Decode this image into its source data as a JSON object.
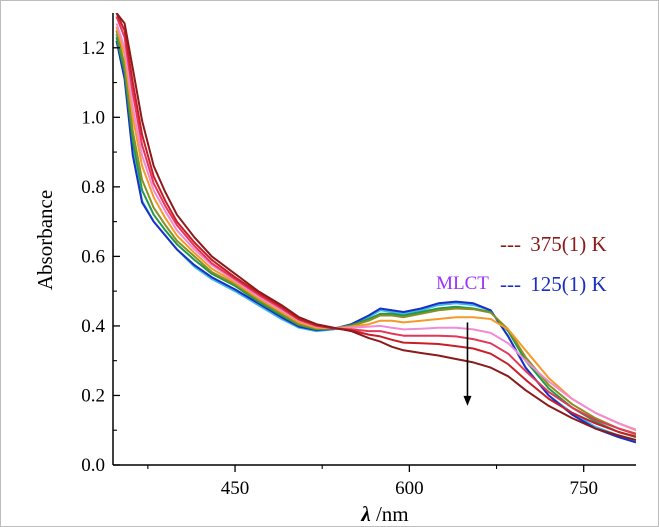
{
  "chart_data": {
    "type": "line",
    "title": "",
    "xlabel_symbol": "λ",
    "xlabel_unit": " /nm",
    "ylabel": "Absorbance",
    "xlim": [
      345,
      795
    ],
    "ylim": [
      0,
      1.3
    ],
    "x_ticks": [
      450,
      600,
      750
    ],
    "y_ticks": [
      0.0,
      0.2,
      0.4,
      0.6,
      0.8,
      1.0,
      1.2
    ],
    "y_tick_labels": [
      "0.0",
      "0.2",
      "0.4",
      "0.6",
      "0.8",
      "1.0",
      "1.2"
    ],
    "x_tick_labels": [
      "450",
      "600",
      "750"
    ],
    "grid": false,
    "legend": {
      "placement": "right-middle",
      "entries": [
        {
          "marker": "---",
          "label": "375(1) K",
          "color": "#8b1a1a"
        },
        {
          "marker": "---",
          "label": "125(1) K",
          "color": "#1a2fc4"
        }
      ]
    },
    "annotation": {
      "text": "MLCT",
      "color": "#9b30ff",
      "arrow_x": 650,
      "arrow_from": 0.41,
      "arrow_to": 0.17
    },
    "series": [
      {
        "color": "#3fb6e8",
        "values": [
          [
            348,
            1.24
          ],
          [
            355,
            1.12
          ],
          [
            362,
            0.9
          ],
          [
            370,
            0.76
          ],
          [
            380,
            0.7
          ],
          [
            390,
            0.66
          ],
          [
            400,
            0.62
          ],
          [
            415,
            0.57
          ],
          [
            430,
            0.535
          ],
          [
            450,
            0.5
          ],
          [
            470,
            0.46
          ],
          [
            490,
            0.42
          ],
          [
            505,
            0.395
          ],
          [
            520,
            0.385
          ],
          [
            535,
            0.39
          ],
          [
            550,
            0.4
          ],
          [
            565,
            0.425
          ],
          [
            575,
            0.445
          ],
          [
            585,
            0.44
          ],
          [
            595,
            0.435
          ],
          [
            610,
            0.445
          ],
          [
            625,
            0.46
          ],
          [
            640,
            0.465
          ],
          [
            655,
            0.46
          ],
          [
            670,
            0.445
          ],
          [
            685,
            0.37
          ],
          [
            700,
            0.28
          ],
          [
            720,
            0.2
          ],
          [
            740,
            0.15
          ],
          [
            760,
            0.11
          ],
          [
            780,
            0.085
          ],
          [
            795,
            0.07
          ]
        ]
      },
      {
        "color": "#1a2fc4",
        "values": [
          [
            348,
            1.22
          ],
          [
            355,
            1.11
          ],
          [
            362,
            0.89
          ],
          [
            370,
            0.755
          ],
          [
            380,
            0.7
          ],
          [
            390,
            0.66
          ],
          [
            400,
            0.62
          ],
          [
            415,
            0.575
          ],
          [
            430,
            0.54
          ],
          [
            450,
            0.505
          ],
          [
            470,
            0.465
          ],
          [
            490,
            0.425
          ],
          [
            505,
            0.398
          ],
          [
            520,
            0.388
          ],
          [
            535,
            0.392
          ],
          [
            550,
            0.405
          ],
          [
            565,
            0.43
          ],
          [
            575,
            0.45
          ],
          [
            585,
            0.445
          ],
          [
            595,
            0.44
          ],
          [
            610,
            0.45
          ],
          [
            625,
            0.465
          ],
          [
            640,
            0.47
          ],
          [
            655,
            0.465
          ],
          [
            670,
            0.445
          ],
          [
            685,
            0.37
          ],
          [
            700,
            0.28
          ],
          [
            720,
            0.2
          ],
          [
            740,
            0.145
          ],
          [
            760,
            0.105
          ],
          [
            780,
            0.08
          ],
          [
            795,
            0.065
          ]
        ]
      },
      {
        "color": "#1f9a4a",
        "values": [
          [
            348,
            1.23
          ],
          [
            355,
            1.13
          ],
          [
            362,
            0.93
          ],
          [
            370,
            0.79
          ],
          [
            380,
            0.72
          ],
          [
            390,
            0.675
          ],
          [
            400,
            0.635
          ],
          [
            415,
            0.59
          ],
          [
            430,
            0.55
          ],
          [
            450,
            0.515
          ],
          [
            470,
            0.47
          ],
          [
            490,
            0.43
          ],
          [
            505,
            0.402
          ],
          [
            520,
            0.39
          ],
          [
            535,
            0.393
          ],
          [
            550,
            0.402
          ],
          [
            565,
            0.42
          ],
          [
            575,
            0.435
          ],
          [
            585,
            0.435
          ],
          [
            595,
            0.43
          ],
          [
            610,
            0.44
          ],
          [
            625,
            0.45
          ],
          [
            640,
            0.455
          ],
          [
            655,
            0.45
          ],
          [
            670,
            0.44
          ],
          [
            685,
            0.385
          ],
          [
            700,
            0.3
          ],
          [
            720,
            0.22
          ],
          [
            740,
            0.165
          ],
          [
            760,
            0.125
          ],
          [
            780,
            0.095
          ],
          [
            795,
            0.08
          ]
        ]
      },
      {
        "color": "#8a8f1f",
        "values": [
          [
            348,
            1.25
          ],
          [
            355,
            1.15
          ],
          [
            362,
            0.96
          ],
          [
            370,
            0.82
          ],
          [
            380,
            0.74
          ],
          [
            390,
            0.69
          ],
          [
            400,
            0.645
          ],
          [
            415,
            0.6
          ],
          [
            430,
            0.555
          ],
          [
            450,
            0.52
          ],
          [
            470,
            0.475
          ],
          [
            490,
            0.435
          ],
          [
            505,
            0.405
          ],
          [
            520,
            0.392
          ],
          [
            535,
            0.393
          ],
          [
            550,
            0.4
          ],
          [
            565,
            0.415
          ],
          [
            575,
            0.43
          ],
          [
            585,
            0.43
          ],
          [
            595,
            0.425
          ],
          [
            610,
            0.435
          ],
          [
            625,
            0.445
          ],
          [
            640,
            0.45
          ],
          [
            655,
            0.448
          ],
          [
            670,
            0.438
          ],
          [
            685,
            0.39
          ],
          [
            700,
            0.31
          ],
          [
            720,
            0.23
          ],
          [
            740,
            0.175
          ],
          [
            760,
            0.135
          ],
          [
            780,
            0.105
          ],
          [
            795,
            0.088
          ]
        ]
      },
      {
        "color": "#f59a2a",
        "values": [
          [
            348,
            1.26
          ],
          [
            355,
            1.18
          ],
          [
            362,
            1.0
          ],
          [
            370,
            0.86
          ],
          [
            380,
            0.77
          ],
          [
            390,
            0.71
          ],
          [
            400,
            0.66
          ],
          [
            415,
            0.61
          ],
          [
            430,
            0.565
          ],
          [
            450,
            0.525
          ],
          [
            470,
            0.48
          ],
          [
            490,
            0.44
          ],
          [
            505,
            0.41
          ],
          [
            520,
            0.395
          ],
          [
            535,
            0.393
          ],
          [
            550,
            0.398
          ],
          [
            565,
            0.405
          ],
          [
            575,
            0.415
          ],
          [
            585,
            0.415
          ],
          [
            595,
            0.41
          ],
          [
            610,
            0.415
          ],
          [
            625,
            0.42
          ],
          [
            640,
            0.425
          ],
          [
            655,
            0.425
          ],
          [
            670,
            0.42
          ],
          [
            685,
            0.39
          ],
          [
            700,
            0.33
          ],
          [
            720,
            0.25
          ],
          [
            740,
            0.19
          ],
          [
            760,
            0.15
          ],
          [
            780,
            0.12
          ],
          [
            795,
            0.1
          ]
        ]
      },
      {
        "color": "#f28bd6",
        "values": [
          [
            348,
            1.27
          ],
          [
            355,
            1.2
          ],
          [
            362,
            1.03
          ],
          [
            370,
            0.89
          ],
          [
            380,
            0.79
          ],
          [
            390,
            0.73
          ],
          [
            400,
            0.675
          ],
          [
            415,
            0.62
          ],
          [
            430,
            0.575
          ],
          [
            450,
            0.53
          ],
          [
            470,
            0.485
          ],
          [
            490,
            0.445
          ],
          [
            505,
            0.415
          ],
          [
            520,
            0.398
          ],
          [
            535,
            0.393
          ],
          [
            550,
            0.395
          ],
          [
            565,
            0.398
          ],
          [
            575,
            0.4
          ],
          [
            585,
            0.395
          ],
          [
            595,
            0.39
          ],
          [
            610,
            0.392
          ],
          [
            625,
            0.395
          ],
          [
            640,
            0.395
          ],
          [
            655,
            0.39
          ],
          [
            670,
            0.38
          ],
          [
            685,
            0.35
          ],
          [
            700,
            0.3
          ],
          [
            720,
            0.24
          ],
          [
            740,
            0.19
          ],
          [
            760,
            0.15
          ],
          [
            780,
            0.12
          ],
          [
            795,
            0.102
          ]
        ]
      },
      {
        "color": "#e4375a",
        "values": [
          [
            348,
            1.29
          ],
          [
            355,
            1.23
          ],
          [
            362,
            1.07
          ],
          [
            370,
            0.92
          ],
          [
            380,
            0.81
          ],
          [
            390,
            0.745
          ],
          [
            400,
            0.69
          ],
          [
            415,
            0.63
          ],
          [
            430,
            0.58
          ],
          [
            450,
            0.535
          ],
          [
            470,
            0.49
          ],
          [
            490,
            0.45
          ],
          [
            505,
            0.418
          ],
          [
            520,
            0.4
          ],
          [
            535,
            0.393
          ],
          [
            550,
            0.39
          ],
          [
            565,
            0.385
          ],
          [
            575,
            0.385
          ],
          [
            585,
            0.378
          ],
          [
            595,
            0.372
          ],
          [
            610,
            0.372
          ],
          [
            625,
            0.372
          ],
          [
            640,
            0.37
          ],
          [
            655,
            0.362
          ],
          [
            670,
            0.35
          ],
          [
            685,
            0.32
          ],
          [
            700,
            0.27
          ],
          [
            720,
            0.21
          ],
          [
            740,
            0.165
          ],
          [
            760,
            0.13
          ],
          [
            780,
            0.105
          ],
          [
            795,
            0.09
          ]
        ]
      },
      {
        "color": "#c81e2a",
        "values": [
          [
            348,
            1.3
          ],
          [
            355,
            1.25
          ],
          [
            362,
            1.1
          ],
          [
            370,
            0.95
          ],
          [
            380,
            0.83
          ],
          [
            390,
            0.76
          ],
          [
            400,
            0.7
          ],
          [
            415,
            0.64
          ],
          [
            430,
            0.59
          ],
          [
            450,
            0.54
          ],
          [
            470,
            0.495
          ],
          [
            490,
            0.455
          ],
          [
            505,
            0.42
          ],
          [
            520,
            0.402
          ],
          [
            535,
            0.393
          ],
          [
            550,
            0.387
          ],
          [
            565,
            0.375
          ],
          [
            575,
            0.37
          ],
          [
            585,
            0.36
          ],
          [
            595,
            0.352
          ],
          [
            610,
            0.35
          ],
          [
            625,
            0.348
          ],
          [
            640,
            0.342
          ],
          [
            655,
            0.335
          ],
          [
            670,
            0.32
          ],
          [
            685,
            0.29
          ],
          [
            700,
            0.245
          ],
          [
            720,
            0.19
          ],
          [
            740,
            0.15
          ],
          [
            760,
            0.12
          ],
          [
            780,
            0.095
          ],
          [
            795,
            0.082
          ]
        ]
      },
      {
        "color": "#8b1a1a",
        "values": [
          [
            348,
            1.3
          ],
          [
            355,
            1.27
          ],
          [
            362,
            1.14
          ],
          [
            370,
            0.99
          ],
          [
            380,
            0.86
          ],
          [
            390,
            0.785
          ],
          [
            400,
            0.72
          ],
          [
            415,
            0.655
          ],
          [
            430,
            0.6
          ],
          [
            450,
            0.55
          ],
          [
            470,
            0.5
          ],
          [
            490,
            0.46
          ],
          [
            505,
            0.425
          ],
          [
            520,
            0.405
          ],
          [
            535,
            0.395
          ],
          [
            550,
            0.385
          ],
          [
            565,
            0.365
          ],
          [
            575,
            0.355
          ],
          [
            585,
            0.34
          ],
          [
            595,
            0.33
          ],
          [
            610,
            0.322
          ],
          [
            625,
            0.315
          ],
          [
            640,
            0.305
          ],
          [
            655,
            0.295
          ],
          [
            670,
            0.28
          ],
          [
            685,
            0.255
          ],
          [
            700,
            0.215
          ],
          [
            720,
            0.17
          ],
          [
            740,
            0.135
          ],
          [
            760,
            0.105
          ],
          [
            780,
            0.085
          ],
          [
            795,
            0.072
          ]
        ]
      }
    ]
  }
}
